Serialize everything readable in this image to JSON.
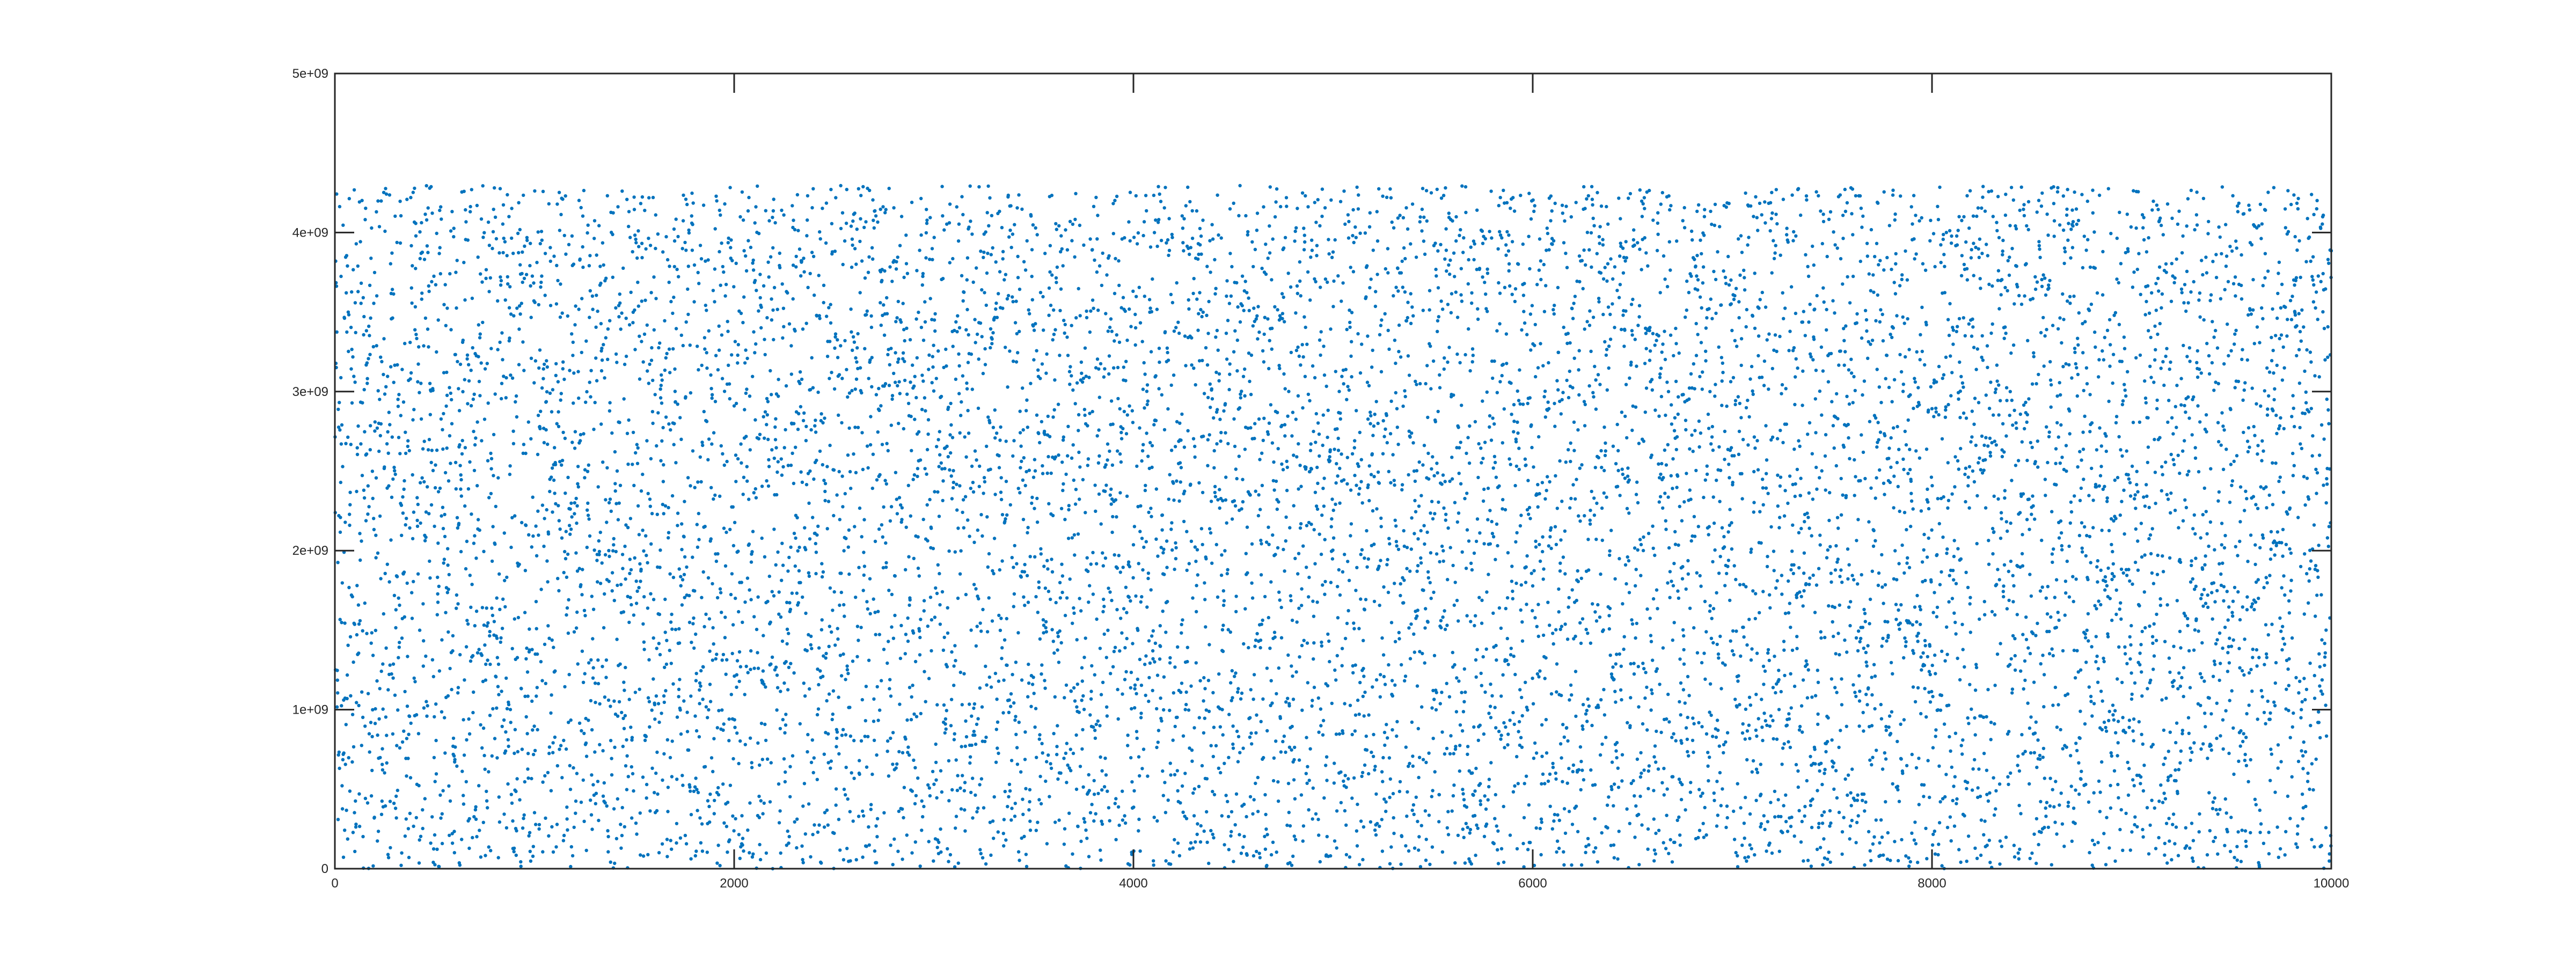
{
  "chart_data": {
    "type": "scatter",
    "title": "",
    "xlabel": "",
    "ylabel": "",
    "n_points": 10000,
    "x_values": "1 to 10000 (index)",
    "y_distribution": "uniform random",
    "y_data_range": [
      0,
      4294967295
    ],
    "xlim": [
      0,
      10000
    ],
    "ylim": [
      0,
      5000000000
    ],
    "x_ticks": [
      0,
      2000,
      4000,
      6000,
      8000,
      10000
    ],
    "x_tick_labels": [
      "0",
      "2000",
      "4000",
      "6000",
      "8000",
      "10000"
    ],
    "y_ticks": [
      0,
      1000000000,
      2000000000,
      3000000000,
      4000000000,
      5000000000
    ],
    "y_tick_labels": [
      "0",
      "1e+09",
      "2e+09",
      "3e+09",
      "4e+09",
      "5e+09"
    ],
    "grid": false,
    "legend": "none",
    "marker": "point",
    "colors": {
      "marker": "#0072BD",
      "axes": "#262626",
      "background": "#ffffff"
    }
  }
}
